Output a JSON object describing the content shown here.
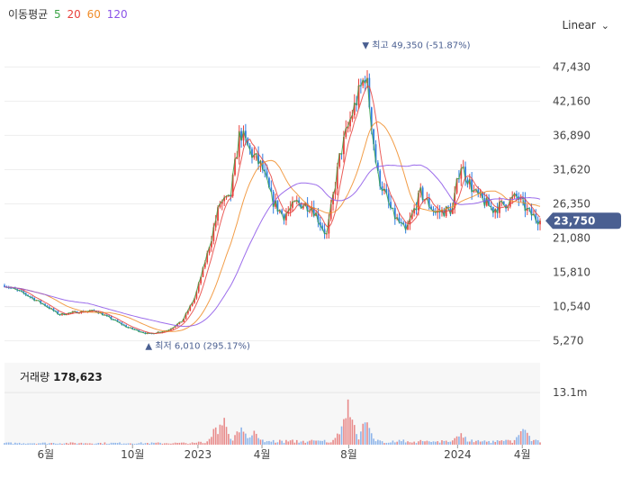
{
  "legend": {
    "title": "이동평균",
    "ma": [
      {
        "period": "5",
        "color": "#3aa346"
      },
      {
        "period": "20",
        "color": "#e8413c"
      },
      {
        "period": "60",
        "color": "#f08c28"
      },
      {
        "period": "120",
        "color": "#8b54e8"
      }
    ]
  },
  "scale_selector": {
    "label": "Linear"
  },
  "volume": {
    "label": "거래량",
    "value": "178,623",
    "max_label": "13.1m"
  },
  "colors": {
    "up": "#e8413c",
    "down": "#2f7de1",
    "price_badge": "#4a5f91",
    "annotation": "#4a5f91"
  },
  "chart_data": {
    "type": "candlestick",
    "y_ticks": [
      "47,430",
      "42,160",
      "36,890",
      "31,620",
      "26,350",
      "21,080",
      "15,810",
      "10,540",
      "5,270"
    ],
    "y_tick_values": [
      47430,
      42160,
      36890,
      31620,
      26350,
      21080,
      15810,
      10540,
      5270
    ],
    "ylim": [
      3000,
      51500
    ],
    "x_ticks": [
      "6월",
      "10월",
      "2023",
      "4월",
      "8월",
      "2024",
      "4월"
    ],
    "x_tick_dates": [
      "2022-06-01",
      "2022-10-01",
      "2023-01-01",
      "2023-04-01",
      "2023-08-01",
      "2024-01-01",
      "2024-04-01"
    ],
    "x_range": [
      "2022-04-04",
      "2024-04-26"
    ],
    "current_price": {
      "value": 23750,
      "label": "23,750"
    },
    "high_annotation": {
      "label": "최고 49,350 (-51.87%)",
      "value": 49350,
      "date": "2023-08-25"
    },
    "low_annotation": {
      "label": "최저 6,010 (295.17%)",
      "value": 6010,
      "date": "2022-10-24"
    },
    "price_path": [
      {
        "date": "2022-04-04",
        "close": 13800
      },
      {
        "date": "2022-05-01",
        "close": 12600
      },
      {
        "date": "2022-06-01",
        "close": 10700
      },
      {
        "date": "2022-06-20",
        "close": 9300
      },
      {
        "date": "2022-07-15",
        "close": 9700
      },
      {
        "date": "2022-08-10",
        "close": 9900
      },
      {
        "date": "2022-09-01",
        "close": 8700
      },
      {
        "date": "2022-09-25",
        "close": 7300
      },
      {
        "date": "2022-10-24",
        "close": 6300
      },
      {
        "date": "2022-11-20",
        "close": 6900
      },
      {
        "date": "2022-12-10",
        "close": 8300
      },
      {
        "date": "2022-12-28",
        "close": 12000
      },
      {
        "date": "2023-01-15",
        "close": 19000
      },
      {
        "date": "2023-02-01",
        "close": 26500
      },
      {
        "date": "2023-02-15",
        "close": 27000
      },
      {
        "date": "2023-03-01",
        "close": 37500
      },
      {
        "date": "2023-03-15",
        "close": 34500
      },
      {
        "date": "2023-04-01",
        "close": 32000
      },
      {
        "date": "2023-04-15",
        "close": 27000
      },
      {
        "date": "2023-05-01",
        "close": 24500
      },
      {
        "date": "2023-05-20",
        "close": 26500
      },
      {
        "date": "2023-06-10",
        "close": 26000
      },
      {
        "date": "2023-07-01",
        "close": 21500
      },
      {
        "date": "2023-07-20",
        "close": 34000
      },
      {
        "date": "2023-08-05",
        "close": 40000
      },
      {
        "date": "2023-08-25",
        "close": 46500
      },
      {
        "date": "2023-09-10",
        "close": 31000
      },
      {
        "date": "2023-10-01",
        "close": 25000
      },
      {
        "date": "2023-10-20",
        "close": 22000
      },
      {
        "date": "2023-11-10",
        "close": 28000
      },
      {
        "date": "2023-12-01",
        "close": 25000
      },
      {
        "date": "2023-12-25",
        "close": 25500
      },
      {
        "date": "2024-01-05",
        "close": 32500
      },
      {
        "date": "2024-01-25",
        "close": 28000
      },
      {
        "date": "2024-02-20",
        "close": 25500
      },
      {
        "date": "2024-03-10",
        "close": 26500
      },
      {
        "date": "2024-03-25",
        "close": 27500
      },
      {
        "date": "2024-04-10",
        "close": 25000
      },
      {
        "date": "2024-04-26",
        "close": 23750
      }
    ],
    "volume_bursts": [
      {
        "date": "2023-01-25",
        "value": 5.0
      },
      {
        "date": "2023-02-05",
        "value": 8.5
      },
      {
        "date": "2023-03-02",
        "value": 6.0
      },
      {
        "date": "2023-03-20",
        "value": 4.5
      },
      {
        "date": "2023-07-22",
        "value": 5.5
      },
      {
        "date": "2023-08-01",
        "value": 13.1
      },
      {
        "date": "2023-08-25",
        "value": 7.5
      },
      {
        "date": "2024-01-05",
        "value": 4.0
      },
      {
        "date": "2024-04-02",
        "value": 6.5
      }
    ],
    "volume_ylim": [
      0,
      14.5
    ]
  }
}
